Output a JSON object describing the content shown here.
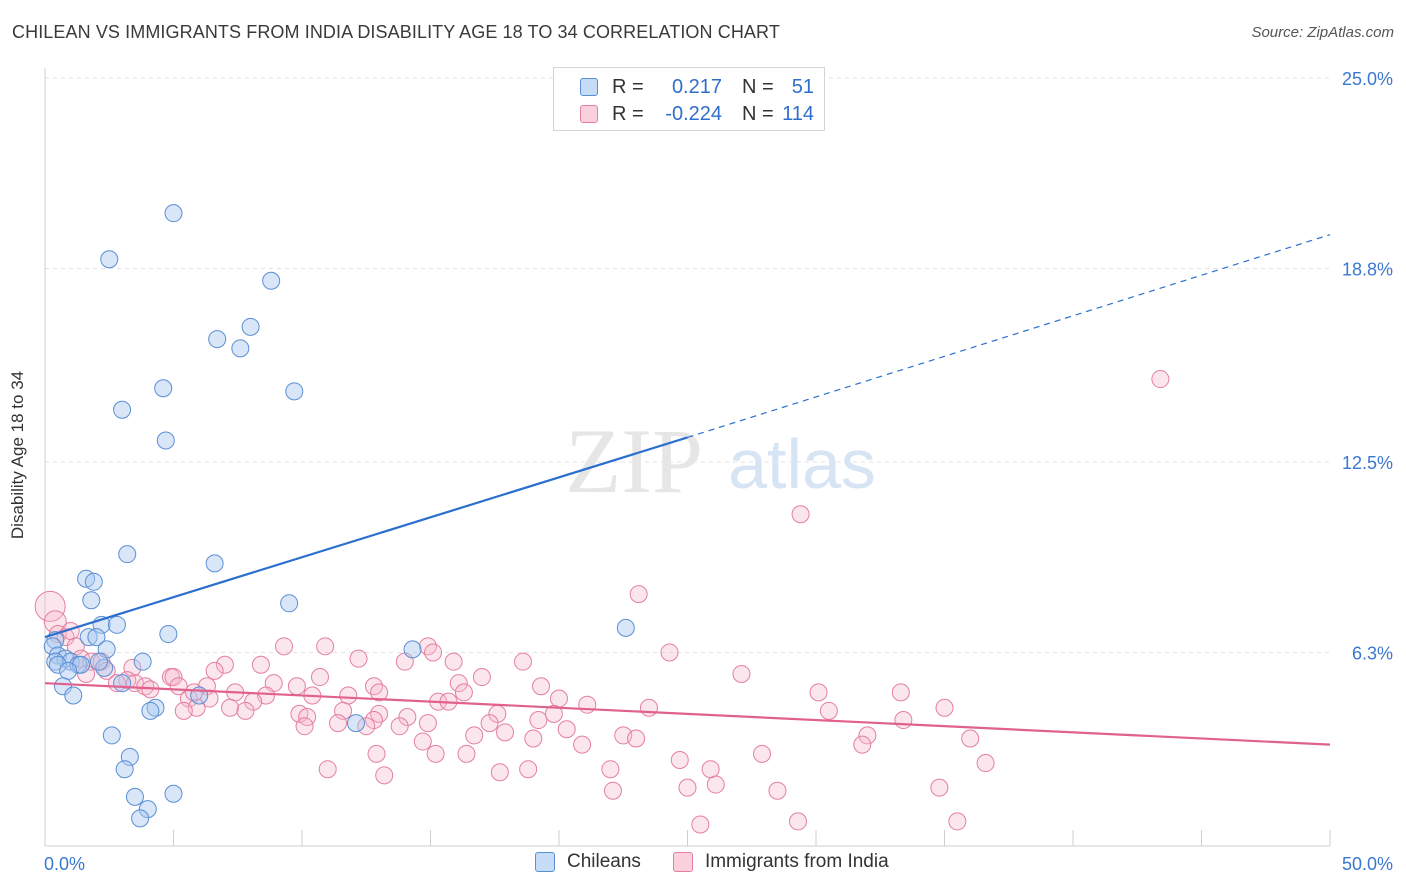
{
  "title": "CHILEAN VS IMMIGRANTS FROM INDIA DISABILITY AGE 18 TO 34 CORRELATION CHART",
  "source": "Source: ZipAtlas.com",
  "watermark": {
    "zip": "ZIP",
    "atlas": "atlas"
  },
  "legend_top": [
    {
      "r_label": "R =",
      "r_value": "0.217",
      "n_label": "N =",
      "n_value": "51"
    },
    {
      "r_label": "R =",
      "r_value": "-0.224",
      "n_label": "N =",
      "n_value": "114"
    }
  ],
  "legend_bottom": [
    "Chileans",
    "Immigrants from India"
  ],
  "colors": {
    "blue_fill": "#a8c8f0",
    "blue_stroke": "#5b8fd4",
    "blue_line": "#2b6fcf",
    "pink_fill": "#f6b8cc",
    "pink_stroke": "#e47fa0",
    "pink_line": "#e0618f",
    "grid": "#e2e2e2",
    "axis_text": "#3a78cf"
  },
  "chart_data": {
    "type": "scatter",
    "title": "CHILEAN VS IMMIGRANTS FROM INDIA DISABILITY AGE 18 TO 34 CORRELATION CHART",
    "xlabel": "",
    "ylabel": "Disability Age 18 to 34",
    "xlim": [
      0,
      50
    ],
    "ylim": [
      0,
      25
    ],
    "x_tick_labels": [
      "0.0%",
      "50.0%"
    ],
    "y_ticks": [
      6.3,
      12.5,
      18.8,
      25.0
    ],
    "y_tick_labels": [
      "6.3%",
      "12.5%",
      "18.8%",
      "25.0%"
    ],
    "grid": "horizontal dashed",
    "legend_position": "top-center and bottom",
    "series": [
      {
        "name": "Chileans",
        "color": "#5b8fd4",
        "r": 0.217,
        "n": 51,
        "trend": {
          "x": [
            0,
            25
          ],
          "y": [
            6.8,
            13.3
          ],
          "dashed_extension_to": [
            50,
            19.9
          ]
        },
        "points": [
          [
            5.0,
            20.6
          ],
          [
            2.5,
            19.1
          ],
          [
            8.8,
            18.4
          ],
          [
            8.0,
            16.9
          ],
          [
            6.7,
            16.5
          ],
          [
            7.6,
            16.2
          ],
          [
            4.6,
            14.9
          ],
          [
            9.7,
            14.8
          ],
          [
            3.0,
            14.2
          ],
          [
            4.7,
            13.2
          ],
          [
            3.2,
            9.5
          ],
          [
            6.6,
            9.2
          ],
          [
            1.6,
            8.7
          ],
          [
            1.9,
            8.6
          ],
          [
            1.8,
            8.0
          ],
          [
            9.5,
            7.9
          ],
          [
            2.2,
            7.2
          ],
          [
            2.8,
            7.2
          ],
          [
            22.6,
            7.1
          ],
          [
            4.8,
            6.9
          ],
          [
            1.7,
            6.8
          ],
          [
            2.0,
            6.8
          ],
          [
            0.4,
            6.7
          ],
          [
            0.3,
            6.5
          ],
          [
            2.4,
            6.4
          ],
          [
            14.3,
            6.4
          ],
          [
            0.5,
            6.2
          ],
          [
            0.8,
            6.1
          ],
          [
            0.4,
            6.0
          ],
          [
            1.0,
            6.0
          ],
          [
            1.3,
            5.9
          ],
          [
            3.8,
            6.0
          ],
          [
            1.4,
            5.9
          ],
          [
            0.5,
            5.9
          ],
          [
            2.3,
            5.8
          ],
          [
            0.9,
            5.7
          ],
          [
            3.0,
            5.3
          ],
          [
            0.7,
            5.2
          ],
          [
            1.1,
            4.9
          ],
          [
            6.0,
            4.9
          ],
          [
            4.3,
            4.5
          ],
          [
            4.1,
            4.4
          ],
          [
            12.1,
            4.0
          ],
          [
            2.6,
            3.6
          ],
          [
            3.3,
            2.9
          ],
          [
            3.1,
            2.5
          ],
          [
            3.5,
            1.6
          ],
          [
            5.0,
            1.7
          ],
          [
            4.0,
            1.2
          ],
          [
            3.7,
            0.9
          ],
          [
            2.1,
            6.0
          ]
        ]
      },
      {
        "name": "Immigrants from India",
        "color": "#e47fa0",
        "r": -0.224,
        "n": 114,
        "trend": {
          "x": [
            0,
            50
          ],
          "y": [
            5.3,
            3.3
          ]
        },
        "points": [
          [
            43.4,
            15.2
          ],
          [
            29.4,
            10.8
          ],
          [
            23.1,
            8.2
          ],
          [
            0.2,
            7.8
          ],
          [
            0.4,
            7.3
          ],
          [
            0.5,
            6.9
          ],
          [
            0.8,
            6.8
          ],
          [
            1.0,
            7.0
          ],
          [
            1.2,
            6.5
          ],
          [
            9.3,
            6.5
          ],
          [
            10.9,
            6.5
          ],
          [
            14.9,
            6.5
          ],
          [
            15.1,
            6.3
          ],
          [
            24.3,
            6.3
          ],
          [
            1.4,
            6.1
          ],
          [
            1.8,
            6.0
          ],
          [
            2.2,
            6.0
          ],
          [
            12.2,
            6.1
          ],
          [
            14.0,
            6.0
          ],
          [
            15.9,
            6.0
          ],
          [
            18.6,
            6.0
          ],
          [
            7.0,
            5.9
          ],
          [
            8.4,
            5.9
          ],
          [
            3.4,
            5.8
          ],
          [
            2.4,
            5.7
          ],
          [
            6.6,
            5.7
          ],
          [
            1.6,
            5.6
          ],
          [
            27.1,
            5.6
          ],
          [
            4.9,
            5.5
          ],
          [
            5.0,
            5.5
          ],
          [
            10.7,
            5.5
          ],
          [
            17.0,
            5.5
          ],
          [
            3.2,
            5.4
          ],
          [
            3.5,
            5.3
          ],
          [
            8.9,
            5.3
          ],
          [
            12.8,
            5.2
          ],
          [
            2.8,
            5.3
          ],
          [
            3.9,
            5.2
          ],
          [
            5.2,
            5.2
          ],
          [
            6.3,
            5.2
          ],
          [
            9.8,
            5.2
          ],
          [
            16.1,
            5.3
          ],
          [
            19.3,
            5.2
          ],
          [
            30.1,
            5.0
          ],
          [
            33.3,
            5.0
          ],
          [
            4.1,
            5.1
          ],
          [
            7.4,
            5.0
          ],
          [
            13.0,
            5.0
          ],
          [
            16.3,
            5.0
          ],
          [
            8.6,
            4.9
          ],
          [
            10.4,
            4.9
          ],
          [
            11.8,
            4.9
          ],
          [
            5.6,
            4.8
          ],
          [
            6.4,
            4.8
          ],
          [
            8.1,
            4.7
          ],
          [
            15.3,
            4.7
          ],
          [
            21.1,
            4.6
          ],
          [
            23.5,
            4.5
          ],
          [
            35.0,
            4.5
          ],
          [
            5.9,
            4.5
          ],
          [
            7.2,
            4.5
          ],
          [
            9.9,
            4.3
          ],
          [
            13.0,
            4.3
          ],
          [
            17.6,
            4.3
          ],
          [
            7.8,
            4.4
          ],
          [
            11.6,
            4.4
          ],
          [
            5.4,
            4.4
          ],
          [
            10.2,
            4.2
          ],
          [
            14.1,
            4.2
          ],
          [
            12.8,
            4.1
          ],
          [
            17.3,
            4.0
          ],
          [
            19.2,
            4.1
          ],
          [
            14.9,
            4.0
          ],
          [
            33.4,
            4.1
          ],
          [
            11.4,
            4.0
          ],
          [
            13.8,
            3.9
          ],
          [
            12.5,
            3.9
          ],
          [
            10.1,
            3.9
          ],
          [
            20.3,
            3.8
          ],
          [
            17.9,
            3.7
          ],
          [
            22.5,
            3.6
          ],
          [
            16.7,
            3.6
          ],
          [
            32.0,
            3.6
          ],
          [
            36.0,
            3.5
          ],
          [
            23.0,
            3.5
          ],
          [
            14.7,
            3.4
          ],
          [
            19.0,
            3.5
          ],
          [
            20.9,
            3.3
          ],
          [
            16.4,
            3.0
          ],
          [
            27.9,
            3.0
          ],
          [
            15.2,
            3.0
          ],
          [
            24.7,
            2.8
          ],
          [
            36.6,
            2.7
          ],
          [
            11.0,
            2.5
          ],
          [
            18.8,
            2.5
          ],
          [
            22.0,
            2.5
          ],
          [
            25.9,
            2.5
          ],
          [
            17.7,
            2.4
          ],
          [
            13.2,
            2.3
          ],
          [
            26.1,
            2.0
          ],
          [
            25.0,
            1.9
          ],
          [
            28.5,
            1.8
          ],
          [
            22.1,
            1.8
          ],
          [
            35.5,
            0.8
          ],
          [
            29.3,
            0.8
          ],
          [
            25.5,
            0.7
          ],
          [
            34.8,
            1.9
          ],
          [
            30.5,
            4.4
          ],
          [
            20.0,
            4.8
          ],
          [
            5.8,
            5.0
          ],
          [
            31.8,
            3.3
          ],
          [
            12.9,
            3.0
          ],
          [
            19.8,
            4.3
          ],
          [
            15.7,
            4.7
          ]
        ]
      }
    ]
  }
}
